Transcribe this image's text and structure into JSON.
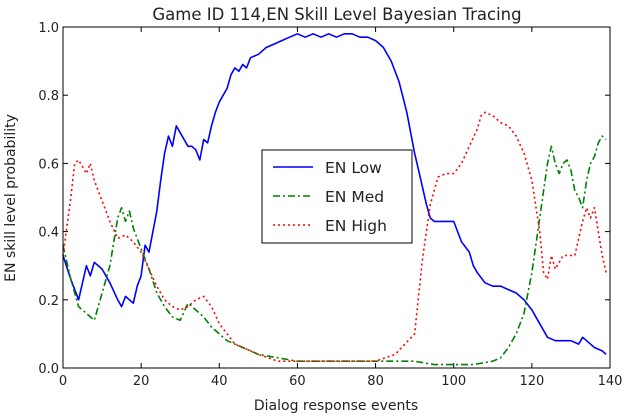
{
  "chart_data": {
    "type": "line",
    "title": "Game ID 114,EN Skill Level Bayesian Tracing",
    "xlabel": "Dialog response events",
    "ylabel": "EN skill level probability",
    "xlim": [
      0,
      140
    ],
    "ylim": [
      0,
      1.0
    ],
    "xticks": [
      0,
      20,
      40,
      60,
      80,
      100,
      120,
      140
    ],
    "yticks": [
      0.0,
      0.2,
      0.4,
      0.6,
      0.8,
      1.0
    ],
    "xtick_labels": [
      "0",
      "20",
      "40",
      "60",
      "80",
      "100",
      "120",
      "140"
    ],
    "ytick_labels": [
      "0.0",
      "0.2",
      "0.4",
      "0.6",
      "0.8",
      "1.0"
    ],
    "grid": false,
    "legend_position": "center",
    "series": [
      {
        "name": "EN Low",
        "color": "#0000ff",
        "style": "solid",
        "x": [
          0,
          2,
          4,
          5,
          6,
          7,
          8,
          10,
          12,
          14,
          15,
          16,
          18,
          19,
          20,
          21,
          22,
          24,
          25,
          26,
          27,
          28,
          29,
          30,
          32,
          33,
          34,
          35,
          36,
          37,
          38,
          39,
          40,
          41,
          42,
          43,
          44,
          45,
          46,
          47,
          48,
          50,
          52,
          54,
          56,
          58,
          60,
          62,
          64,
          66,
          68,
          70,
          72,
          74,
          76,
          78,
          80,
          82,
          84,
          86,
          88,
          90,
          91,
          92,
          93,
          94,
          95,
          96,
          97,
          98,
          100,
          101,
          102,
          104,
          105,
          106,
          108,
          110,
          112,
          114,
          116,
          118,
          120,
          122,
          124,
          126,
          128,
          130,
          132,
          133,
          134,
          136,
          138,
          139
        ],
        "y": [
          0.33,
          0.26,
          0.2,
          0.25,
          0.3,
          0.27,
          0.31,
          0.29,
          0.25,
          0.2,
          0.18,
          0.21,
          0.19,
          0.24,
          0.27,
          0.36,
          0.34,
          0.46,
          0.55,
          0.63,
          0.68,
          0.65,
          0.71,
          0.69,
          0.65,
          0.65,
          0.64,
          0.61,
          0.67,
          0.66,
          0.71,
          0.75,
          0.78,
          0.8,
          0.82,
          0.86,
          0.88,
          0.87,
          0.89,
          0.88,
          0.91,
          0.92,
          0.94,
          0.95,
          0.96,
          0.97,
          0.98,
          0.97,
          0.98,
          0.97,
          0.98,
          0.97,
          0.98,
          0.98,
          0.97,
          0.97,
          0.96,
          0.94,
          0.9,
          0.84,
          0.75,
          0.63,
          0.58,
          0.53,
          0.48,
          0.44,
          0.43,
          0.43,
          0.43,
          0.43,
          0.43,
          0.4,
          0.37,
          0.34,
          0.3,
          0.28,
          0.25,
          0.24,
          0.24,
          0.23,
          0.22,
          0.2,
          0.17,
          0.13,
          0.09,
          0.08,
          0.08,
          0.08,
          0.07,
          0.09,
          0.08,
          0.06,
          0.05,
          0.04
        ]
      },
      {
        "name": "EN Med",
        "color": "#008000",
        "style": "dashdot",
        "x": [
          0,
          2,
          4,
          6,
          8,
          10,
          12,
          14,
          15,
          16,
          17,
          18,
          20,
          22,
          24,
          26,
          28,
          30,
          32,
          34,
          36,
          38,
          40,
          42,
          44,
          46,
          48,
          50,
          55,
          60,
          65,
          70,
          75,
          80,
          85,
          90,
          95,
          100,
          105,
          110,
          112,
          114,
          116,
          118,
          120,
          122,
          124,
          125,
          126,
          127,
          128,
          129,
          130,
          131,
          132,
          133,
          134,
          135,
          136,
          137,
          138,
          139
        ],
        "y": [
          0.36,
          0.26,
          0.18,
          0.16,
          0.14,
          0.22,
          0.3,
          0.44,
          0.47,
          0.43,
          0.46,
          0.41,
          0.35,
          0.29,
          0.22,
          0.18,
          0.15,
          0.14,
          0.19,
          0.17,
          0.15,
          0.12,
          0.1,
          0.08,
          0.07,
          0.06,
          0.05,
          0.04,
          0.03,
          0.02,
          0.02,
          0.02,
          0.02,
          0.02,
          0.02,
          0.02,
          0.01,
          0.01,
          0.01,
          0.02,
          0.03,
          0.06,
          0.1,
          0.16,
          0.28,
          0.44,
          0.6,
          0.65,
          0.6,
          0.57,
          0.6,
          0.61,
          0.58,
          0.52,
          0.5,
          0.47,
          0.55,
          0.6,
          0.62,
          0.66,
          0.68,
          0.67
        ]
      },
      {
        "name": "EN High",
        "color": "#ff0000",
        "style": "dotted",
        "x": [
          0,
          2,
          3,
          4,
          6,
          7,
          8,
          10,
          12,
          14,
          16,
          18,
          20,
          22,
          24,
          26,
          28,
          30,
          32,
          34,
          36,
          38,
          40,
          42,
          44,
          46,
          48,
          50,
          55,
          60,
          65,
          70,
          75,
          80,
          85,
          90,
          92,
          94,
          96,
          98,
          100,
          102,
          104,
          106,
          107,
          108,
          110,
          112,
          114,
          116,
          118,
          120,
          122,
          123,
          124,
          125,
          126,
          128,
          129,
          130,
          131,
          132,
          133,
          134,
          135,
          136,
          137,
          138,
          139
        ],
        "y": [
          0.33,
          0.5,
          0.6,
          0.61,
          0.57,
          0.6,
          0.55,
          0.49,
          0.43,
          0.38,
          0.39,
          0.37,
          0.34,
          0.29,
          0.24,
          0.2,
          0.18,
          0.17,
          0.18,
          0.2,
          0.21,
          0.18,
          0.13,
          0.1,
          0.07,
          0.06,
          0.05,
          0.04,
          0.02,
          0.02,
          0.02,
          0.02,
          0.02,
          0.02,
          0.04,
          0.1,
          0.32,
          0.48,
          0.56,
          0.57,
          0.57,
          0.6,
          0.65,
          0.7,
          0.74,
          0.75,
          0.74,
          0.72,
          0.71,
          0.68,
          0.63,
          0.55,
          0.4,
          0.28,
          0.26,
          0.33,
          0.29,
          0.33,
          0.33,
          0.33,
          0.33,
          0.38,
          0.43,
          0.47,
          0.44,
          0.47,
          0.4,
          0.33,
          0.28
        ]
      }
    ]
  }
}
